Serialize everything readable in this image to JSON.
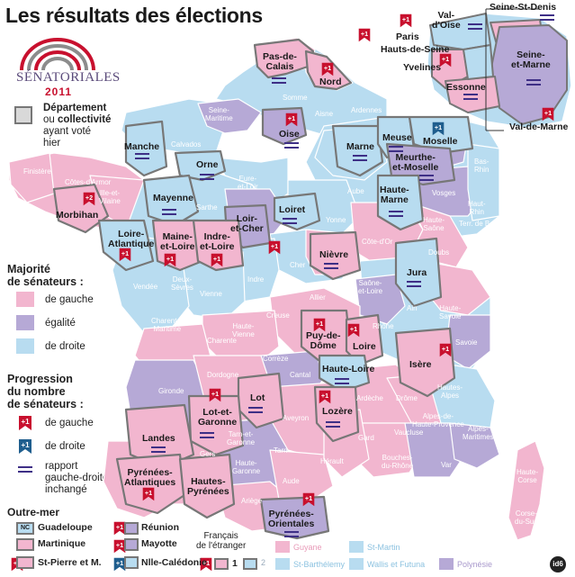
{
  "title": "Les résultats des élections",
  "logo": {
    "line1": "SÉNATORIALES",
    "year": "2011"
  },
  "colors": {
    "gauche": "#f2b6cf",
    "egalite": "#b6a9d6",
    "droite": "#b8dcf0",
    "voted_border": "#777777",
    "badge_gauche": "#c8102e",
    "badge_droite": "#1f5e8e",
    "equal": "#3e2f86"
  },
  "legend": {
    "voted_bold": "Département",
    "voted_rest1": "ou ",
    "voted_bold2": "collectivité",
    "voted_rest2": "ayant voté",
    "voted_rest3": "hier",
    "majority_title1": "Majorité",
    "majority_title2": "de sénateurs :",
    "gauche": "de gauche",
    "egalite": "égalité",
    "droite": "de droite",
    "progress_title1": "Progression",
    "progress_title2": "du nombre",
    "progress_title3": "de sénateurs :",
    "prog_gauche": "de gauche",
    "prog_droite": "de droite",
    "rapport1": "rapport",
    "rapport2": "gauche-droite",
    "rapport3": "inchangé",
    "plus1": "+1",
    "plus2": "+2"
  },
  "voted_labels": {
    "pas_de_calais": "Pas-de-\nCalais",
    "nord": "Nord",
    "oise": "Oise",
    "manche": "Manche",
    "orne": "Orne",
    "marne": "Marne",
    "meuse": "Meuse",
    "moselle": "Moselle",
    "meurthe": "Meurthe-\net-Moselle",
    "mayenne": "Mayenne",
    "morbihan": "Morbihan",
    "loiret": "Loiret",
    "loir_et_cher": "Loir-\net-Cher",
    "haute_marne": "Haute-\nMarne",
    "loire_atlantique": "Loire-\nAtlantique",
    "maine_et_loire": "Maine-\net-Loire",
    "indre_et_loire": "Indre-\net-Loire",
    "nievre": "Nièvre",
    "jura": "Jura",
    "puy_de_dome": "Puy-de-\nDôme",
    "loire": "Loire",
    "haute_loire": "Haute-Loire",
    "isere": "Isère",
    "lot": "Lot",
    "lot_et_garonne": "Lot-et-\nGaronne",
    "lozere": "Lozère",
    "landes": "Landes",
    "pyr_atl": "Pyrénées-\nAtlantiques",
    "hautes_pyr": "Hautes-\nPyrénées",
    "pyr_or": "Pyrénées-\nOrientales",
    "val_d_oise": "Val-\nd'Oise",
    "paris": "Paris",
    "hauts_de_seine": "Hauts-de-Seine",
    "yvelines": "Yvelines",
    "essonne": "Essonne",
    "seine_st_denis": "Seine-St-Denis",
    "seine_et_marne": "Seine-\net-Marne",
    "val_de_marne": "Val-de-Marne"
  },
  "other_deps": {
    "finistere": "Finistère",
    "cotes": "Côtes-d'Armor",
    "ille": "Ille-et-\nVilaine",
    "calvados": "Calvados",
    "eure": "Eure",
    "seine_maritime": "Seine-\nMaritime",
    "somme": "Somme",
    "aisne": "Aisne",
    "ardennes": "Ardennes",
    "eure_et_loir": "Eure-\net-Loir",
    "sarthe": "Sarthe",
    "aube": "Aube",
    "yonne": "Yonne",
    "vosges": "Vosges",
    "bas_rhin": "Bas-\nRhin",
    "haut_rhin": "Haut-\nRhin",
    "territoire": "Terr. de Belfort",
    "haute_saone": "Haute-\nSaône",
    "doubs": "Doubs",
    "cote_d_or": "Côte-d'Or",
    "saone_et_loire": "Saône-\net-Loire",
    "ain": "Ain",
    "haute_savoie": "Haute-\nSavoie",
    "savoie": "Savoie",
    "rhone": "Rhône",
    "allier": "Allier",
    "cher": "Cher",
    "indre": "Indre",
    "creuse": "Creuse",
    "vienne": "Vienne",
    "deux_sevres": "Deux-\nSèvres",
    "vendee": "Vendée",
    "charente_maritime": "Charente-\nMaritime",
    "charente": "Charente",
    "haute_vienne": "Haute-\nVienne",
    "correze": "Corrèze",
    "dordogne": "Dordogne",
    "gironde": "Gironde",
    "cantal": "Cantal",
    "aveyron": "Aveyron",
    "tarn_et_garonne": "Tarn-et-\nGaronne",
    "gers": "Gers",
    "tarn": "Tarn",
    "haute_garonne": "Haute-\nGaronne",
    "ariege": "Ariège",
    "aude": "Aude",
    "herault": "Hérault",
    "gard": "Gard",
    "ardeche": "Ardèche",
    "drome": "Drôme",
    "vaucluse": "Vaucluse",
    "hautes_alpes": "Hautes-\nAlpes",
    "ahp": "Alpes-de-\nHaute-Provence",
    "alpes_maritimes": "Alpes-\nMaritimes",
    "var": "Var",
    "bouches": "Bouches-\ndu-Rhône",
    "haute_corse": "Haute-\nCorse",
    "corse_du_sud": "Corse-\ndu-Sud"
  },
  "outremer": {
    "title": "Outre-mer",
    "nc": "NC",
    "guadeloupe": "Guadeloupe",
    "martinique": "Martinique",
    "st_pierre": "St-Pierre et M.",
    "reunion": "Réunion",
    "mayotte": "Mayotte",
    "nlle_caledonie": "Nlle-Calédonie",
    "francais1": "Français",
    "francais2": "de l'étranger",
    "one": "1",
    "two": "2",
    "guyane": "Guyane",
    "st_barth": "St-Barthélemy",
    "st_martin": "St-Martin",
    "wallis": "Wallis et Futuna",
    "polynesie": "Polynésie"
  },
  "source": "id6"
}
